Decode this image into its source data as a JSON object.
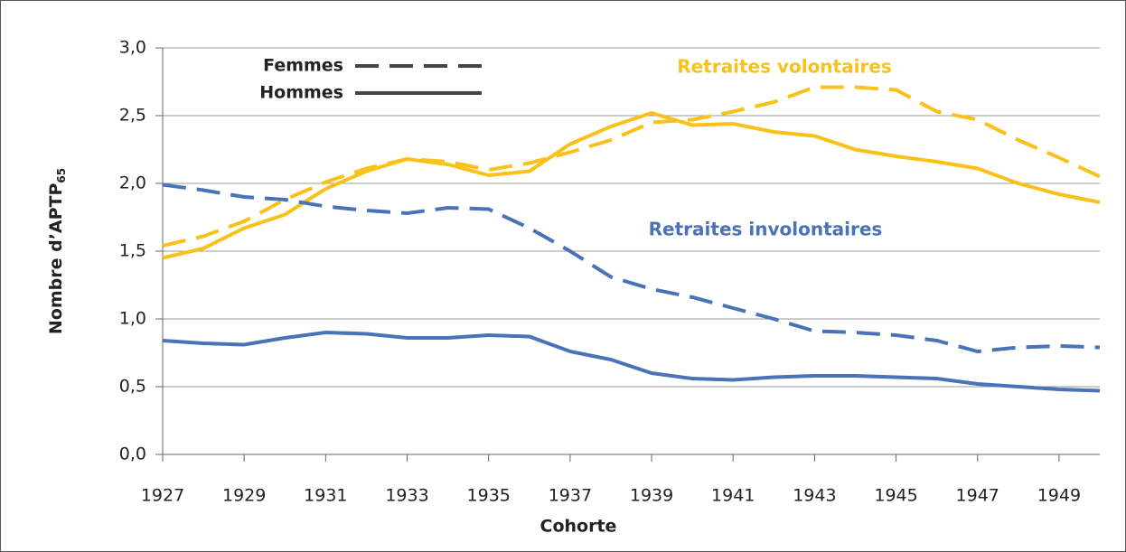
{
  "chart_data": {
    "type": "line",
    "y_label": "Nombre d’APTP",
    "y_label_sub": "65",
    "x_label": "Cohorte",
    "x": [
      1927,
      1928,
      1929,
      1930,
      1931,
      1932,
      1933,
      1934,
      1935,
      1936,
      1937,
      1938,
      1939,
      1940,
      1941,
      1942,
      1943,
      1944,
      1945,
      1946,
      1947,
      1948,
      1949,
      1950
    ],
    "xlim": [
      1927,
      1950
    ],
    "xticks": [
      1927,
      1929,
      1931,
      1933,
      1935,
      1937,
      1939,
      1941,
      1943,
      1945,
      1947,
      1949
    ],
    "ylim": [
      0,
      3
    ],
    "yticks": [
      {
        "value": 0,
        "label": "0,0"
      },
      {
        "value": 0.5,
        "label": "0,5"
      },
      {
        "value": 1,
        "label": "1,0"
      },
      {
        "value": 1.5,
        "label": "1,5"
      },
      {
        "value": 2,
        "label": "2,0"
      },
      {
        "value": 2.5,
        "label": "2,5"
      },
      {
        "value": 3,
        "label": "3,0"
      }
    ],
    "grid": true,
    "legend": [
      {
        "label": "Femmes",
        "style": "dashed"
      },
      {
        "label": "Hommes",
        "style": "solid"
      }
    ],
    "annotations": [
      {
        "text": "Retraites volontaires",
        "color": "#f9c11a"
      },
      {
        "text": "Retraites involontaires",
        "color": "#4a72b8"
      }
    ],
    "series": [
      {
        "color": "#f9c11a",
        "style": "solid",
        "values": [
          1.45,
          1.52,
          1.67,
          1.77,
          1.96,
          2.09,
          2.18,
          2.14,
          2.06,
          2.09,
          2.29,
          2.42,
          2.52,
          2.43,
          2.44,
          2.38,
          2.35,
          2.25,
          2.2,
          2.16,
          2.11,
          2.0,
          1.92,
          1.86
        ]
      },
      {
        "color": "#f9c11a",
        "style": "dashed",
        "values": [
          1.54,
          1.61,
          1.72,
          1.88,
          2.01,
          2.11,
          2.18,
          2.16,
          2.1,
          2.15,
          2.23,
          2.32,
          2.45,
          2.47,
          2.53,
          2.6,
          2.71,
          2.71,
          2.69,
          2.53,
          2.47,
          2.32,
          2.19,
          2.05
        ]
      },
      {
        "color": "#4a72b8",
        "style": "dashed",
        "values": [
          1.99,
          1.95,
          1.9,
          1.88,
          1.83,
          1.8,
          1.78,
          1.82,
          1.81,
          1.67,
          1.5,
          1.31,
          1.22,
          1.16,
          1.08,
          1.0,
          0.91,
          0.9,
          0.88,
          0.84,
          0.76,
          0.79,
          0.8,
          0.79
        ]
      },
      {
        "color": "#4a72b8",
        "style": "solid",
        "values": [
          0.84,
          0.82,
          0.81,
          0.86,
          0.9,
          0.89,
          0.86,
          0.86,
          0.88,
          0.87,
          0.76,
          0.7,
          0.6,
          0.56,
          0.55,
          0.57,
          0.58,
          0.58,
          0.57,
          0.56,
          0.52,
          0.5,
          0.48,
          0.47
        ]
      }
    ]
  }
}
